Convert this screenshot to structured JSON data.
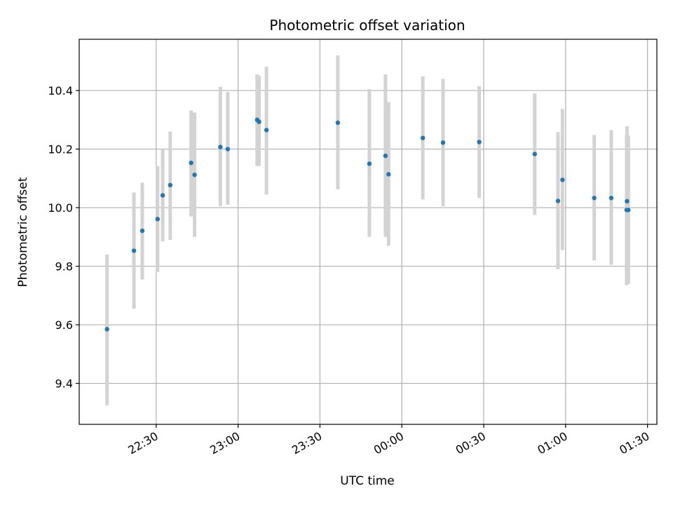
{
  "chart_data": {
    "type": "scatter",
    "title": "Photometric offset variation",
    "xlabel": "UTC time",
    "ylabel": "Photometric offset",
    "grid": true,
    "x_tick_labels": [
      "22:30",
      "23:00",
      "23:30",
      "00:00",
      "00:30",
      "01:00",
      "01:30"
    ],
    "y_tick_labels": [
      "9.4",
      "9.6",
      "9.8",
      "10.0",
      "10.2",
      "10.4"
    ],
    "y_ticks": [
      9.4,
      9.6,
      9.8,
      10.0,
      10.2,
      10.4
    ],
    "xlim": [
      "22:01:48",
      "01:33:26"
    ],
    "ylim": [
      9.26,
      10.575
    ],
    "errorbar_color": "#d3d3d3",
    "point_color": "#1f77b4",
    "points": [
      {
        "x": "22:12:00",
        "y": 9.585,
        "ylow": 9.325,
        "yhigh": 9.84
      },
      {
        "x": "22:21:51",
        "y": 9.853,
        "ylow": 9.655,
        "yhigh": 10.052
      },
      {
        "x": "22:24:54",
        "y": 9.921,
        "ylow": 9.755,
        "yhigh": 10.085
      },
      {
        "x": "22:30:31",
        "y": 9.961,
        "ylow": 9.78,
        "yhigh": 10.142
      },
      {
        "x": "22:32:23",
        "y": 10.042,
        "ylow": 9.885,
        "yhigh": 10.2
      },
      {
        "x": "22:35:08",
        "y": 10.077,
        "ylow": 9.89,
        "yhigh": 10.26
      },
      {
        "x": "22:42:48",
        "y": 10.153,
        "ylow": 9.97,
        "yhigh": 10.332
      },
      {
        "x": "22:44:04",
        "y": 10.112,
        "ylow": 9.9,
        "yhigh": 10.325
      },
      {
        "x": "22:53:30",
        "y": 10.207,
        "ylow": 10.005,
        "yhigh": 10.412
      },
      {
        "x": "22:56:13",
        "y": 10.2,
        "ylow": 10.01,
        "yhigh": 10.395
      },
      {
        "x": "23:06:59",
        "y": 10.3,
        "ylow": 10.142,
        "yhigh": 10.455
      },
      {
        "x": "23:07:42",
        "y": 10.293,
        "ylow": 10.142,
        "yhigh": 10.45
      },
      {
        "x": "23:10:24",
        "y": 10.265,
        "ylow": 10.045,
        "yhigh": 10.482
      },
      {
        "x": "23:36:33",
        "y": 10.29,
        "ylow": 10.063,
        "yhigh": 10.52
      },
      {
        "x": "23:48:06",
        "y": 10.15,
        "ylow": 9.9,
        "yhigh": 10.405
      },
      {
        "x": "23:54:00",
        "y": 10.177,
        "ylow": 9.9,
        "yhigh": 10.455
      },
      {
        "x": "23:55:08",
        "y": 10.114,
        "ylow": 9.87,
        "yhigh": 10.36
      },
      {
        "x": "00:07:41",
        "y": 10.238,
        "ylow": 10.028,
        "yhigh": 10.448
      },
      {
        "x": "00:15:06",
        "y": 10.222,
        "ylow": 10.005,
        "yhigh": 10.44
      },
      {
        "x": "00:28:21",
        "y": 10.224,
        "ylow": 10.033,
        "yhigh": 10.415
      },
      {
        "x": "00:48:41",
        "y": 10.183,
        "ylow": 9.975,
        "yhigh": 10.39
      },
      {
        "x": "00:57:12",
        "y": 10.023,
        "ylow": 9.79,
        "yhigh": 10.258
      },
      {
        "x": "00:58:51",
        "y": 10.095,
        "ylow": 9.855,
        "yhigh": 10.337
      },
      {
        "x": "01:10:29",
        "y": 10.033,
        "ylow": 9.82,
        "yhigh": 10.248
      },
      {
        "x": "01:16:43",
        "y": 10.033,
        "ylow": 9.805,
        "yhigh": 10.265
      },
      {
        "x": "01:22:30",
        "y": 10.022,
        "ylow": 9.765,
        "yhigh": 10.278
      },
      {
        "x": "01:22:21",
        "y": 9.992,
        "ylow": 9.735,
        "yhigh": 10.248
      },
      {
        "x": "01:22:59",
        "y": 9.992,
        "ylow": 9.74,
        "yhigh": 10.246
      }
    ]
  }
}
